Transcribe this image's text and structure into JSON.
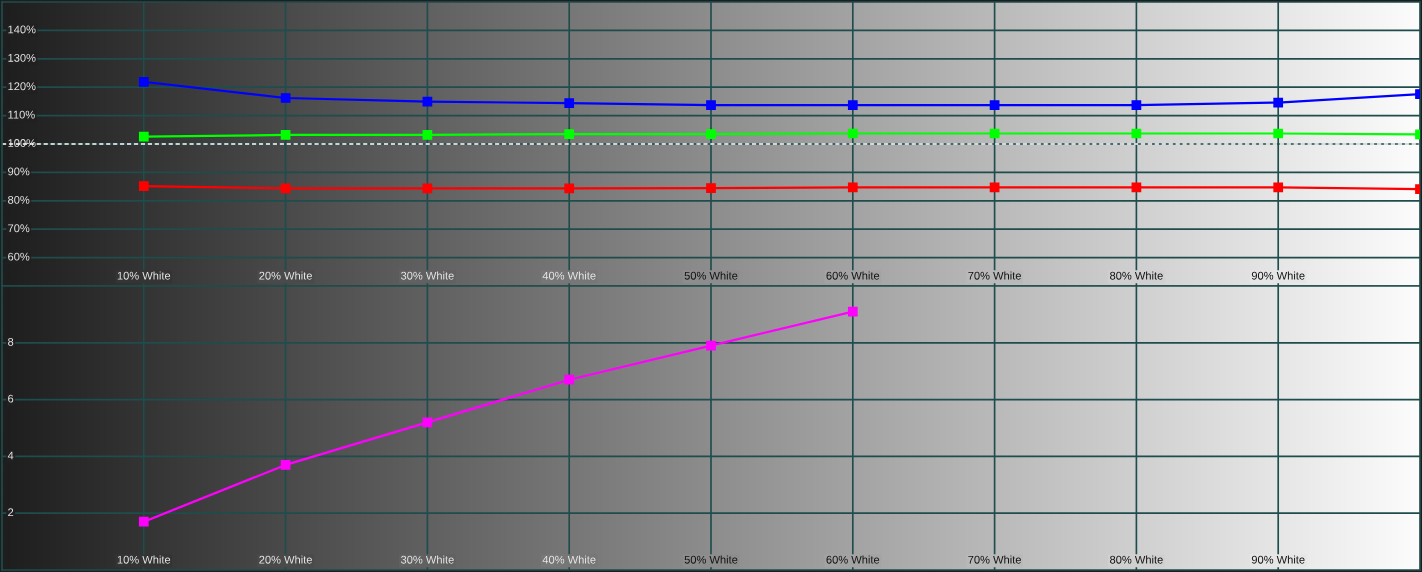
{
  "chart_data": [
    {
      "type": "line",
      "x": [
        10,
        20,
        30,
        40,
        50,
        60,
        70,
        80,
        90,
        100
      ],
      "xlim": [
        0,
        100
      ],
      "xticks": [
        {
          "value": 10,
          "label": "10% White"
        },
        {
          "value": 20,
          "label": "20% White"
        },
        {
          "value": 30,
          "label": "30% White"
        },
        {
          "value": 40,
          "label": "40% White"
        },
        {
          "value": 50,
          "label": "50% White"
        },
        {
          "value": 60,
          "label": "60% White"
        },
        {
          "value": 70,
          "label": "70% White"
        },
        {
          "value": 80,
          "label": "80% White"
        },
        {
          "value": 90,
          "label": "90% White"
        }
      ],
      "ylim": [
        50,
        150
      ],
      "yticks": [
        {
          "value": 60,
          "label": "60%"
        },
        {
          "value": 70,
          "label": "70%"
        },
        {
          "value": 80,
          "label": "80%"
        },
        {
          "value": 90,
          "label": "90%"
        },
        {
          "value": 100,
          "label": "100%"
        },
        {
          "value": 110,
          "label": "110%"
        },
        {
          "value": 120,
          "label": "120%"
        },
        {
          "value": 130,
          "label": "130%"
        },
        {
          "value": 140,
          "label": "140%"
        }
      ],
      "grid": true,
      "marker": "square",
      "line_style": "solid",
      "ref_lines": [
        {
          "axis": "y",
          "value": 100,
          "line_style": "dashed",
          "color": "#ffffff"
        }
      ],
      "series": [
        {
          "color": "#0000ff",
          "values": [
            121.9,
            116.2,
            114.9,
            114.4,
            113.7,
            113.7,
            113.7,
            113.7,
            114.6,
            117.6
          ]
        },
        {
          "color": "#00ff00",
          "values": [
            102.6,
            103.2,
            103.2,
            103.5,
            103.5,
            103.7,
            103.7,
            103.7,
            103.7,
            103.4
          ]
        },
        {
          "color": "#ff0000",
          "values": [
            85.2,
            84.4,
            84.4,
            84.4,
            84.5,
            84.7,
            84.7,
            84.7,
            84.7,
            84.1
          ]
        }
      ]
    },
    {
      "type": "line",
      "x": [
        10,
        20,
        30,
        40,
        50,
        60
      ],
      "xlim": [
        0,
        100
      ],
      "xticks": [
        {
          "value": 10,
          "label": "10% White"
        },
        {
          "value": 20,
          "label": "20% White"
        },
        {
          "value": 30,
          "label": "30% White"
        },
        {
          "value": 40,
          "label": "40% White"
        },
        {
          "value": 50,
          "label": "50% White"
        },
        {
          "value": 60,
          "label": "60% White"
        },
        {
          "value": 70,
          "label": "70% White"
        },
        {
          "value": 80,
          "label": "80% White"
        },
        {
          "value": 90,
          "label": "90% White"
        }
      ],
      "ylim": [
        0,
        10
      ],
      "yticks": [
        2,
        4,
        6,
        8
      ],
      "grid": true,
      "marker": "square",
      "line_style": "solid",
      "series": [
        {
          "color": "#ff00ff",
          "values": [
            1.7,
            3.7,
            5.2,
            6.7,
            7.9,
            9.1
          ]
        }
      ]
    }
  ]
}
